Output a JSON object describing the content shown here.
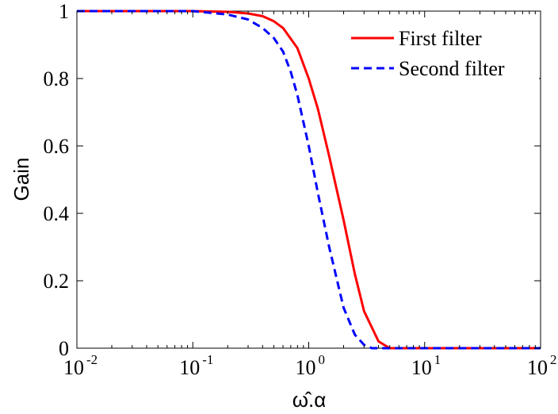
{
  "chart_data": {
    "type": "line",
    "xlabel": "ω̂.α",
    "ylabel": "Gain",
    "xscale": "log",
    "xlim": [
      0.01,
      100
    ],
    "ylim": [
      0,
      1
    ],
    "grid": false,
    "legend_position": "top-right",
    "x_ticks": [
      {
        "base": "10",
        "exp": "-2",
        "value": 0.01
      },
      {
        "base": "10",
        "exp": "-1",
        "value": 0.1
      },
      {
        "base": "10",
        "exp": "0",
        "value": 1
      },
      {
        "base": "10",
        "exp": "1",
        "value": 10
      },
      {
        "base": "10",
        "exp": "2",
        "value": 100
      }
    ],
    "y_ticks": [
      {
        "label": "0",
        "value": 0
      },
      {
        "label": "0.2",
        "value": 0.2
      },
      {
        "label": "0.4",
        "value": 0.4
      },
      {
        "label": "0.6",
        "value": 0.6
      },
      {
        "label": "0.8",
        "value": 0.8
      },
      {
        "label": "1",
        "value": 1
      }
    ],
    "series": [
      {
        "name": "First filter",
        "color": "#ff0000",
        "style": "solid",
        "x": [
          0.01,
          0.1,
          0.2,
          0.3,
          0.4,
          0.5,
          0.6,
          0.8,
          1.0,
          1.2,
          1.5,
          2.0,
          2.5,
          3.0,
          4.0,
          5.0,
          6.0,
          10,
          100
        ],
        "y": [
          1.0,
          1.0,
          0.998,
          0.993,
          0.985,
          0.97,
          0.95,
          0.89,
          0.8,
          0.71,
          0.57,
          0.38,
          0.22,
          0.11,
          0.02,
          0.0,
          0.0,
          0.0,
          0.0
        ]
      },
      {
        "name": "Second filter",
        "color": "#0000ff",
        "style": "dashed",
        "x": [
          0.01,
          0.1,
          0.2,
          0.3,
          0.4,
          0.5,
          0.6,
          0.7,
          0.8,
          1.0,
          1.2,
          1.5,
          2.0,
          2.5,
          3.0,
          3.5,
          5.0,
          10,
          100
        ],
        "y": [
          1.0,
          1.0,
          0.99,
          0.975,
          0.95,
          0.92,
          0.88,
          0.82,
          0.75,
          0.6,
          0.46,
          0.3,
          0.12,
          0.04,
          0.01,
          0.0,
          0.0,
          0.0,
          0.0
        ]
      }
    ]
  }
}
